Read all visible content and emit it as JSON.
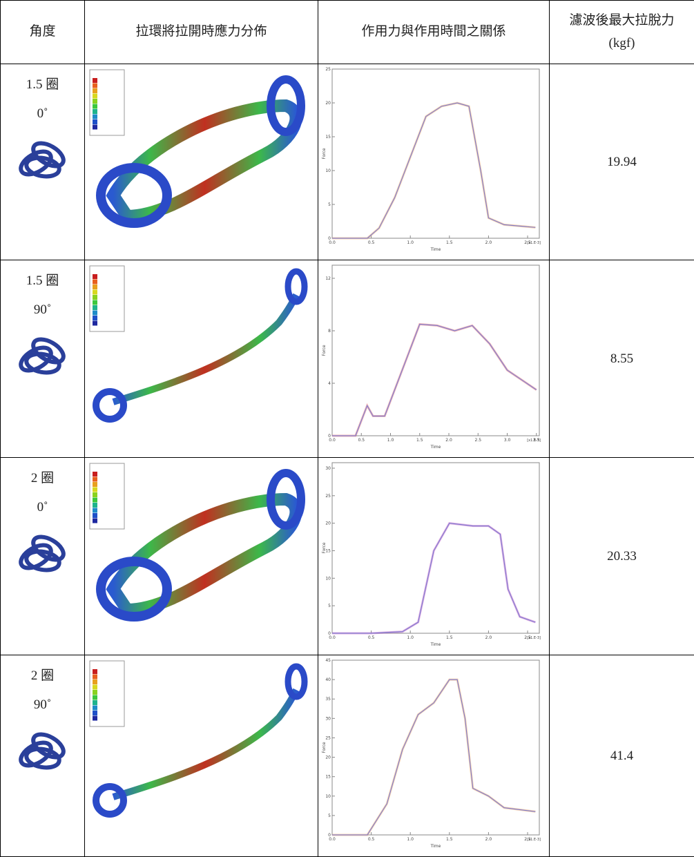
{
  "header": {
    "columns": [
      "角度",
      "拉環將拉開時應力分佈",
      "作用力與作用時間之關係",
      "濾波後最大拉脫力(kgf)"
    ]
  },
  "rows": [
    {
      "turns": "1.5 圈",
      "angle": "0˚",
      "max_force": 19.94,
      "plot": {
        "xlabel": "Time",
        "ylabel": "Force",
        "x_multiplier": "[x1.E-3]",
        "raw_color": "#f5a55a",
        "filtered_color": "#7f7fd0",
        "xlim": [
          0,
          2.65
        ],
        "ylim": [
          0,
          25
        ],
        "yticks": [
          0,
          5,
          10,
          15,
          20,
          25
        ],
        "xticks": [
          {
            "value": 0,
            "label": "0.0"
          },
          {
            "value": 0.5,
            "label": "0.5"
          },
          {
            "value": 1,
            "label": "1.0"
          },
          {
            "value": 1.5,
            "label": "1.5"
          },
          {
            "value": 2,
            "label": "2.0"
          },
          {
            "value": 2.5,
            "label": "2.5"
          }
        ],
        "x": [
          0,
          0.45,
          0.6,
          0.8,
          1.0,
          1.2,
          1.4,
          1.6,
          1.75,
          1.9,
          2.0,
          2.2,
          2.6
        ],
        "values": [
          0,
          0,
          1.5,
          6,
          12,
          18,
          19.5,
          20,
          19.5,
          10,
          3,
          2,
          1.6
        ]
      }
    },
    {
      "turns": "1.5 圈",
      "angle": "90˚",
      "max_force": 8.55,
      "plot": {
        "xlabel": "Time",
        "ylabel": "Force",
        "x_multiplier": "[x1.E-3]",
        "raw_color": "#e86a6a",
        "filtered_color": "#7f7fd0",
        "xlim": [
          0,
          3.55
        ],
        "ylim": [
          0,
          13
        ],
        "yticks": [
          0,
          4,
          8,
          12
        ],
        "xticks": [
          {
            "value": 0,
            "label": "0.0"
          },
          {
            "value": 0.5,
            "label": "0.5"
          },
          {
            "value": 1,
            "label": "1.0"
          },
          {
            "value": 1.5,
            "label": "1.5"
          },
          {
            "value": 2,
            "label": "2.0"
          },
          {
            "value": 2.5,
            "label": "2.5"
          },
          {
            "value": 3,
            "label": "3.0"
          },
          {
            "value": 3.5,
            "label": "3.5"
          }
        ],
        "x": [
          0,
          0.4,
          0.6,
          0.7,
          0.9,
          1.2,
          1.5,
          1.8,
          2.1,
          2.4,
          2.7,
          3.0,
          3.5
        ],
        "values": [
          0,
          0,
          2.3,
          1.5,
          1.5,
          5,
          8.5,
          8.4,
          8,
          8.4,
          7,
          5,
          3.5
        ]
      }
    },
    {
      "turns": "2 圈",
      "angle": "0˚",
      "max_force": 20.33,
      "plot": {
        "xlabel": "Time",
        "ylabel": "Force",
        "x_multiplier": "[x1.E-3]",
        "raw_color": "#c85ac8",
        "filtered_color": "#7f7fd0",
        "xlim": [
          0,
          2.65
        ],
        "ylim": [
          0,
          31
        ],
        "yticks": [
          0,
          5,
          10,
          15,
          20,
          25,
          30
        ],
        "xticks": [
          {
            "value": 0,
            "label": "0.0"
          },
          {
            "value": 0.5,
            "label": "0.5"
          },
          {
            "value": 1,
            "label": "1.0"
          },
          {
            "value": 1.5,
            "label": "1.5"
          },
          {
            "value": 2,
            "label": "2.0"
          },
          {
            "value": 2.5,
            "label": "2.5"
          }
        ],
        "x": [
          0,
          0.5,
          0.9,
          1.1,
          1.3,
          1.5,
          1.8,
          2.0,
          2.15,
          2.25,
          2.4,
          2.6
        ],
        "values": [
          0,
          0,
          0.3,
          2,
          15,
          20,
          19.5,
          19.5,
          18,
          8,
          3,
          2
        ]
      }
    },
    {
      "turns": "2 圈",
      "angle": "90˚",
      "max_force": 41.4,
      "plot": {
        "xlabel": "Time",
        "ylabel": "Force",
        "x_multiplier": "[x1.E-3]",
        "raw_color": "#f5a55a",
        "filtered_color": "#7f7fd0",
        "xlim": [
          0,
          2.65
        ],
        "ylim": [
          0,
          45
        ],
        "yticks": [
          0,
          5,
          10,
          15,
          20,
          25,
          30,
          35,
          40,
          45
        ],
        "xticks": [
          {
            "value": 0,
            "label": "0.0"
          },
          {
            "value": 0.5,
            "label": "0.5"
          },
          {
            "value": 1,
            "label": "1.0"
          },
          {
            "value": 1.5,
            "label": "1.5"
          },
          {
            "value": 2,
            "label": "2.0"
          },
          {
            "value": 2.5,
            "label": "2.5"
          }
        ],
        "x": [
          0,
          0.45,
          0.7,
          0.9,
          1.1,
          1.3,
          1.5,
          1.6,
          1.7,
          1.8,
          2.0,
          2.2,
          2.6
        ],
        "values": [
          0,
          0,
          8,
          22,
          31,
          34,
          40,
          40,
          30,
          12,
          10,
          7,
          6
        ]
      }
    }
  ]
}
